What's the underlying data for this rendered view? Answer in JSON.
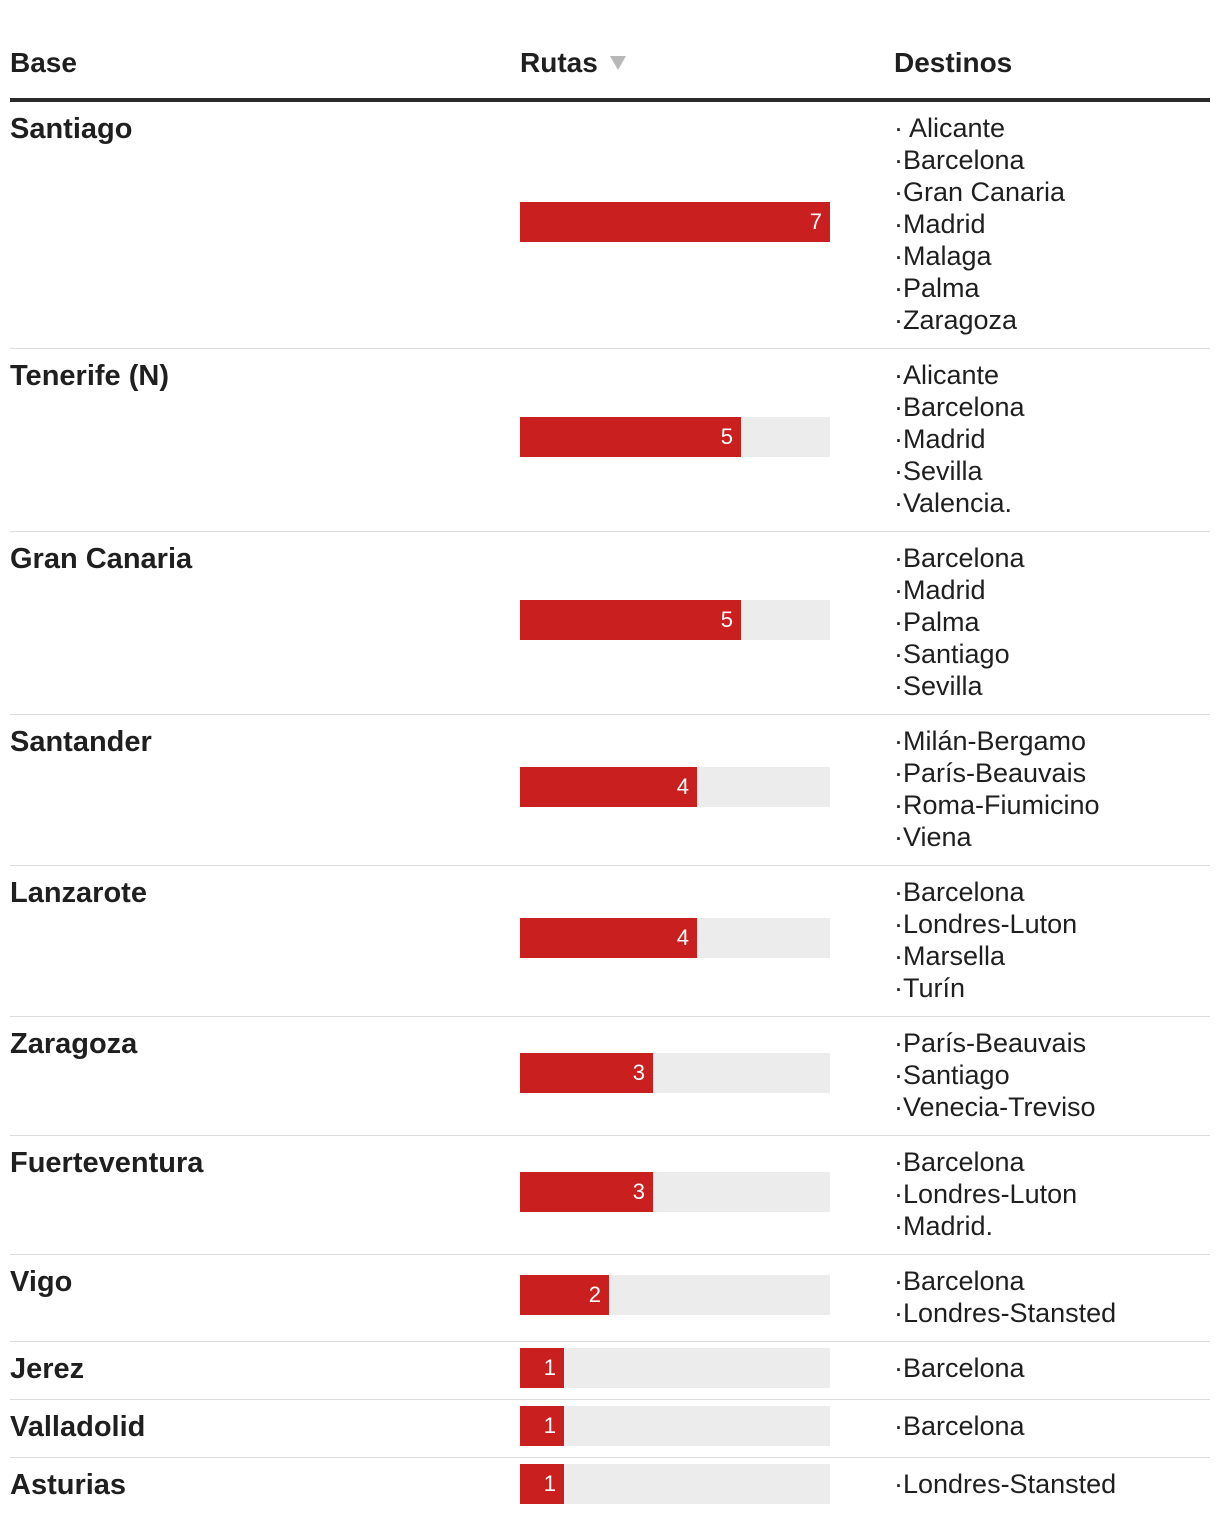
{
  "header": {
    "base_label": "Base",
    "rutas_label": "Rutas",
    "destinos_label": "Destinos",
    "sort_indicator": "sort-descending-icon"
  },
  "colors": {
    "bar": "#c91f1f",
    "track": "#ececec",
    "rule": "#2b2b2b"
  },
  "chart_data": {
    "type": "table",
    "columns": [
      "Base",
      "Rutas",
      "Destinos"
    ],
    "max": 7,
    "rows": [
      {
        "base": "Santiago",
        "rutas": 7,
        "destinos": [
          "· Alicante",
          "·Barcelona",
          "·Gran Canaria",
          "·Madrid",
          "·Malaga",
          "·Palma",
          "·Zaragoza"
        ]
      },
      {
        "base": "Tenerife (N)",
        "rutas": 5,
        "destinos": [
          "·Alicante",
          "·Barcelona",
          "·Madrid",
          "·Sevilla",
          "·Valencia."
        ]
      },
      {
        "base": "Gran Canaria",
        "rutas": 5,
        "destinos": [
          "·Barcelona",
          "·Madrid",
          "·Palma",
          "·Santiago",
          "·Sevilla"
        ]
      },
      {
        "base": "Santander",
        "rutas": 4,
        "destinos": [
          "·Milán-Bergamo",
          "·París-Beauvais",
          "·Roma-Fiumicino",
          "·Viena"
        ]
      },
      {
        "base": "Lanzarote",
        "rutas": 4,
        "destinos": [
          "·Barcelona",
          "·Londres-Luton",
          "·Marsella",
          "·Turín"
        ]
      },
      {
        "base": "Zaragoza",
        "rutas": 3,
        "destinos": [
          "·París-Beauvais",
          "·Santiago",
          "·Venecia-Treviso"
        ]
      },
      {
        "base": "Fuerteventura",
        "rutas": 3,
        "destinos": [
          "·Barcelona",
          "·Londres-Luton",
          "·Madrid."
        ]
      },
      {
        "base": "Vigo",
        "rutas": 2,
        "destinos": [
          "·Barcelona",
          "·Londres-Stansted"
        ]
      },
      {
        "base": "Jerez",
        "rutas": 1,
        "destinos": [
          "·Barcelona"
        ]
      },
      {
        "base": "Valladolid",
        "rutas": 1,
        "destinos": [
          "·Barcelona"
        ]
      },
      {
        "base": "Asturias",
        "rutas": 1,
        "destinos": [
          "·Londres-Stansted"
        ]
      }
    ]
  }
}
